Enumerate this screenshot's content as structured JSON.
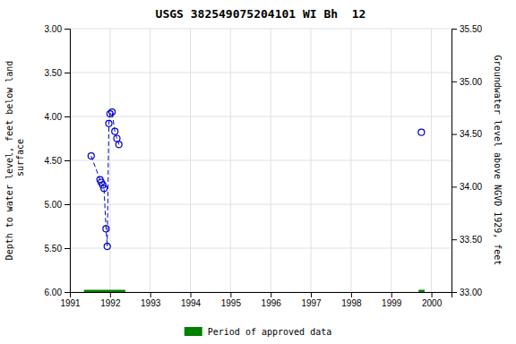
{
  "chart_data": {
    "type": "line",
    "title": "USGS 382549075204101 WI Bh  12",
    "ylabel": "Depth to water level, feet below land\n surface",
    "y2label": "Groundwater level above NGVD 1929, feet",
    "xlim": [
      1991,
      2000.5
    ],
    "xticks": [
      1991,
      1992,
      1993,
      1994,
      1995,
      1996,
      1997,
      1998,
      1999,
      2000
    ],
    "ylim": [
      6.0,
      3.0
    ],
    "yticks": [
      {
        "value": 3.0,
        "label": "3.00"
      },
      {
        "value": 3.5,
        "label": "3.50"
      },
      {
        "value": 4.0,
        "label": "4.00"
      },
      {
        "value": 4.5,
        "label": "4.50"
      },
      {
        "value": 5.0,
        "label": "5.00"
      },
      {
        "value": 5.5,
        "label": "5.50"
      },
      {
        "value": 6.0,
        "label": "6.00"
      }
    ],
    "y2lim": [
      33.0,
      35.5
    ],
    "y2ticks": [
      {
        "value": 33.0,
        "label": "33.00"
      },
      {
        "value": 33.5,
        "label": "33.50"
      },
      {
        "value": 34.0,
        "label": "34.00"
      },
      {
        "value": 34.5,
        "label": "34.50"
      },
      {
        "value": 35.0,
        "label": "35.00"
      },
      {
        "value": 35.5,
        "label": "35.50"
      }
    ],
    "grid": true,
    "legend": "bottom",
    "series": [
      {
        "type": "line",
        "color": "#0000cc",
        "line_style": "dashed",
        "marker": "circle",
        "x": [
          1991.53,
          1991.75,
          1991.78,
          1991.82,
          1991.85,
          1991.9,
          1991.93,
          1991.97,
          1992.0,
          1992.05,
          1992.12,
          1992.17,
          1992.22
        ],
        "values": [
          4.45,
          4.72,
          4.75,
          4.78,
          4.82,
          5.28,
          5.48,
          4.08,
          3.97,
          3.95,
          4.17,
          4.25,
          4.32
        ]
      },
      {
        "type": "line",
        "color": "#0000cc",
        "line_style": "none",
        "marker": "circle",
        "x": [
          1999.75
        ],
        "values": [
          4.18
        ]
      },
      {
        "type": "segment",
        "name": "Period of approved data",
        "color": "#008000",
        "x_start": [
          1991.35,
          1999.68
        ],
        "x_end": [
          1992.38,
          1999.83
        ],
        "values": [
          6.0,
          6.0
        ]
      }
    ]
  }
}
